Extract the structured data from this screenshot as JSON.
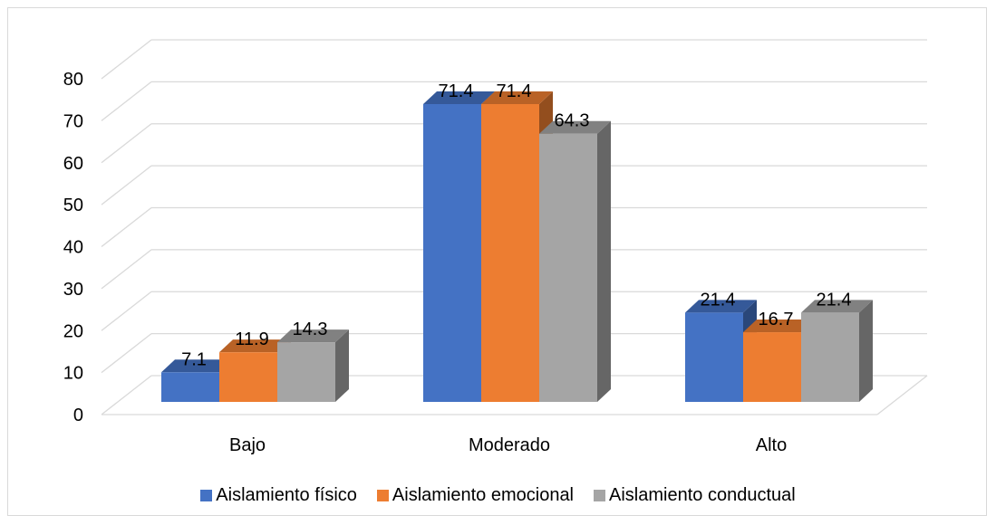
{
  "chart_data": {
    "type": "bar",
    "categories": [
      "Bajo",
      "Moderado",
      "Alto"
    ],
    "series": [
      {
        "name": "Aislamiento físico",
        "values": [
          7.1,
          71.4,
          21.4
        ],
        "color": "#4472c4"
      },
      {
        "name": "Aislamiento emocional",
        "values": [
          11.9,
          71.4,
          16.7
        ],
        "color": "#ed7d31"
      },
      {
        "name": "Aislamiento conductual",
        "values": [
          14.3,
          64.3,
          21.4
        ],
        "color": "#a5a5a5"
      }
    ],
    "ylim": [
      0,
      80
    ],
    "yticks": [
      0,
      10,
      20,
      30,
      40,
      50,
      60,
      70,
      80
    ],
    "title": "",
    "xlabel": "",
    "ylabel": "",
    "grid": true,
    "legend_position": "bottom",
    "style": "3d-clustered-column"
  }
}
